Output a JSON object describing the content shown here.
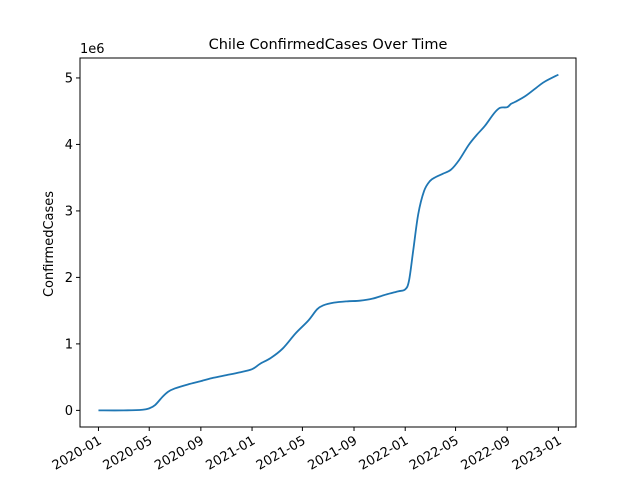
{
  "chart_data": {
    "type": "line",
    "title": "Chile  ConfirmedCases Over Time",
    "xlabel": "",
    "ylabel": "ConfirmedCases",
    "y_offset_label": "1e6",
    "xlim": [
      "2019-11-18",
      "2023-02-12"
    ],
    "ylim": [
      -250000,
      5300000
    ],
    "x_ticks": [
      "2020-01-01",
      "2020-05-01",
      "2020-09-01",
      "2021-01-01",
      "2021-05-01",
      "2021-09-01",
      "2022-01-01",
      "2022-05-01",
      "2022-09-01",
      "2023-01-01"
    ],
    "x_tick_labels": [
      "2020-01",
      "2020-05",
      "2020-09",
      "2021-01",
      "2021-05",
      "2021-09",
      "2022-01",
      "2022-05",
      "2022-09",
      "2023-01"
    ],
    "y_ticks": [
      0,
      1000000,
      2000000,
      3000000,
      4000000,
      5000000
    ],
    "y_tick_labels": [
      "0",
      "1",
      "2",
      "3",
      "4",
      "5"
    ],
    "grid": false,
    "legend": "none",
    "line_color": "#1f77b4",
    "series": [
      {
        "x": [
          "2020-01-01",
          "2020-03-01",
          "2020-04-15",
          "2020-05-01",
          "2020-05-15",
          "2020-06-01",
          "2020-06-15",
          "2020-07-01",
          "2020-08-01",
          "2020-09-01",
          "2020-10-01",
          "2020-11-01",
          "2020-12-01",
          "2021-01-01",
          "2021-01-20",
          "2021-02-15",
          "2021-03-15",
          "2021-04-15",
          "2021-05-15",
          "2021-06-05",
          "2021-06-20",
          "2021-07-15",
          "2021-08-15",
          "2021-09-15",
          "2021-10-15",
          "2021-11-15",
          "2021-12-15",
          "2022-01-01",
          "2022-01-10",
          "2022-01-20",
          "2022-02-01",
          "2022-02-15",
          "2022-03-01",
          "2022-03-15",
          "2022-04-01",
          "2022-04-20",
          "2022-05-10",
          "2022-06-01",
          "2022-06-20",
          "2022-07-10",
          "2022-08-01",
          "2022-08-15",
          "2022-09-01",
          "2022-09-10",
          "2022-09-20",
          "2022-10-15",
          "2022-11-15",
          "2022-12-01",
          "2023-01-01"
        ],
        "y": [
          0,
          0,
          10000,
          30000,
          80000,
          200000,
          280000,
          330000,
          390000,
          440000,
          490000,
          530000,
          570000,
          620000,
          700000,
          790000,
          930000,
          1160000,
          1350000,
          1520000,
          1580000,
          1620000,
          1640000,
          1650000,
          1680000,
          1740000,
          1790000,
          1820000,
          1950000,
          2400000,
          2950000,
          3300000,
          3450000,
          3510000,
          3560000,
          3620000,
          3770000,
          3990000,
          4140000,
          4280000,
          4470000,
          4550000,
          4560000,
          4610000,
          4640000,
          4730000,
          4880000,
          4950000,
          5050000
        ]
      }
    ]
  }
}
